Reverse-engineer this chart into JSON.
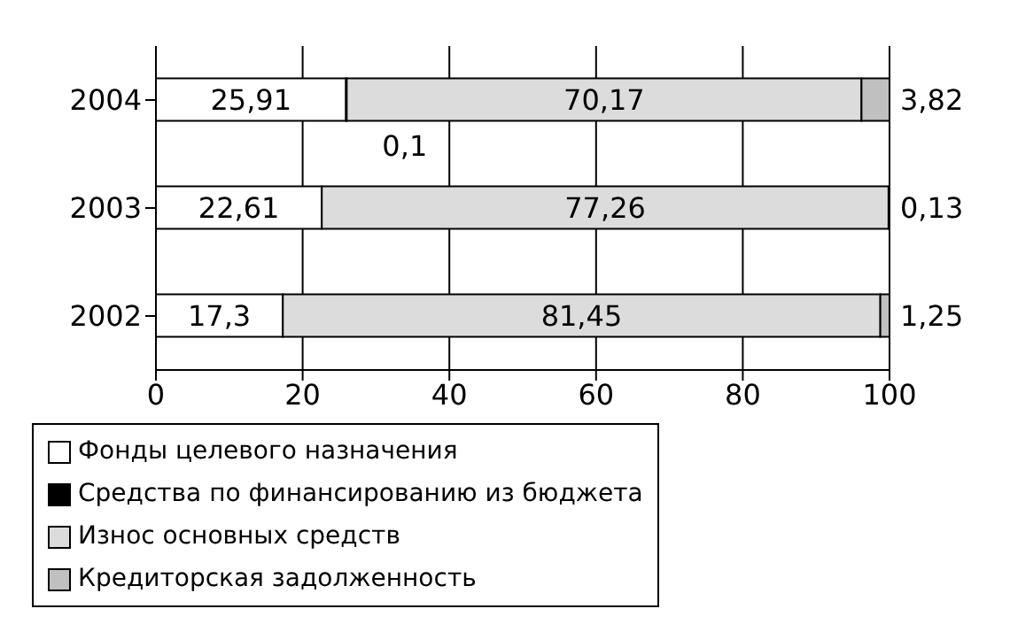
{
  "chart_data": {
    "type": "bar",
    "orientation": "horizontal",
    "stacked": true,
    "categories": [
      "2004",
      "2003",
      "2002"
    ],
    "series": [
      {
        "name": "Фонды целевого назначения",
        "color": "#ffffff",
        "values": [
          25.91,
          22.61,
          17.3
        ],
        "value_labels": [
          "25,91",
          "22,61",
          "17,3"
        ]
      },
      {
        "name": "Средства по финансированию из бюджета",
        "color": "#000000",
        "values": [
          0.1,
          null,
          null
        ],
        "value_labels": [
          "0,1",
          null,
          null
        ]
      },
      {
        "name": "Износ основных средств",
        "color": "#dcdcdc",
        "values": [
          70.17,
          77.26,
          81.45
        ],
        "value_labels": [
          "70,17",
          "77,26",
          "81,45"
        ]
      },
      {
        "name": "Кредиторская задолженность",
        "color": "#c0c0c0",
        "values": [
          3.82,
          0.13,
          1.25
        ],
        "value_labels": [
          "3,82",
          "0,13",
          "1,25"
        ]
      }
    ],
    "xlim": [
      0,
      100
    ],
    "xticks": [
      0,
      20,
      40,
      60,
      80,
      100
    ],
    "grid": "x",
    "legend": "bottom"
  }
}
